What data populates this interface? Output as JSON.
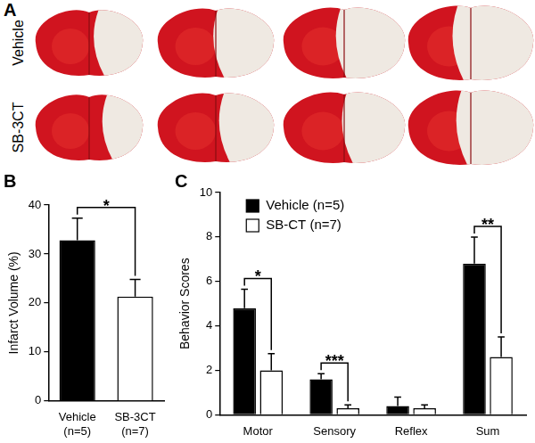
{
  "panel_A": {
    "label": "A",
    "row_labels": [
      "Vehicle",
      "SB-3CT"
    ]
  },
  "chart_data": [
    {
      "panel": "B",
      "type": "bar",
      "y_label": "Infarct Volume (%)",
      "categories": [
        [
          "Vehicle",
          "(n=5)"
        ],
        [
          "SB-3CT",
          "(n=7)"
        ]
      ],
      "values": [
        32.8,
        21.3
      ],
      "errors": [
        4.5,
        3.5
      ],
      "colors": [
        "#000000",
        "#ffffff"
      ],
      "ylim": [
        0,
        40
      ],
      "yticks": [
        0,
        10,
        20,
        30,
        40
      ],
      "grid": false,
      "annotations": [
        {
          "text": "*",
          "between": [
            0,
            1
          ]
        }
      ]
    },
    {
      "panel": "C",
      "type": "bar",
      "y_label": "Behavior Scores",
      "categories": [
        "Motor",
        "Sensory",
        "Reflex",
        "Sum"
      ],
      "series": [
        {
          "name": "Vehicle (n=5)",
          "color": "#000000",
          "values": [
            4.8,
            1.6,
            0.4,
            6.8
          ],
          "errors": [
            0.85,
            0.25,
            0.4,
            1.2
          ]
        },
        {
          "name": "SB-CT (n=7)",
          "color": "#ffffff",
          "values": [
            2.0,
            0.3,
            0.3,
            2.6
          ],
          "errors": [
            0.75,
            0.15,
            0.15,
            0.9
          ]
        }
      ],
      "ylim": [
        0,
        10
      ],
      "yticks": [
        0,
        2,
        4,
        6,
        8,
        10
      ],
      "grid": false,
      "legend": "upper left",
      "annotations": [
        {
          "text": "*",
          "category": "Motor"
        },
        {
          "text": "***",
          "category": "Sensory"
        },
        {
          "text": "**",
          "category": "Sum"
        }
      ]
    }
  ]
}
